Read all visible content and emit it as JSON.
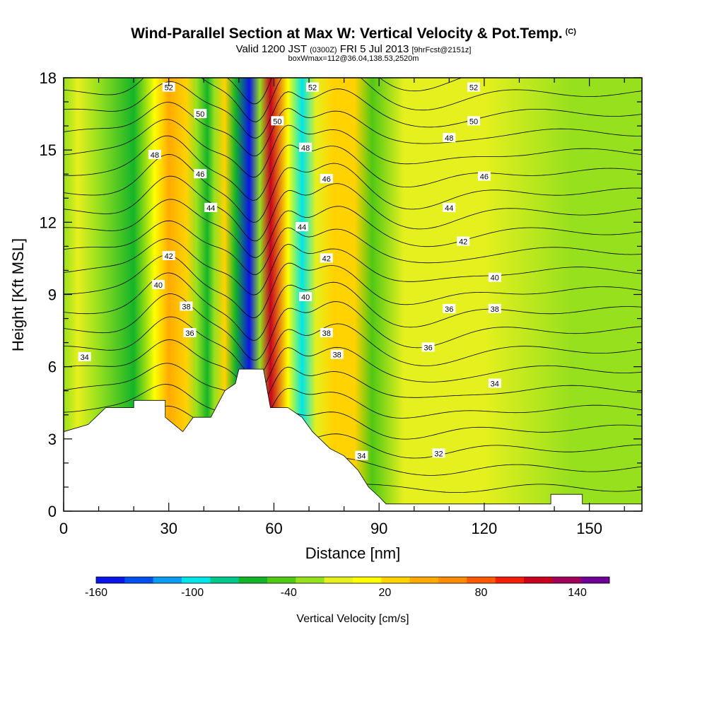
{
  "header": {
    "title": "Wind-Parallel Section at Max W: Vertical Velocity & Pot.Temp.",
    "title_mark": "(C)",
    "valid_a": "Valid 1200 JST ",
    "valid_b": "(0300Z)",
    "valid_c": " FRI 5 Jul 2013 ",
    "valid_d": "[9hrFcst@2151z]",
    "box": "boxWmax=112@36.04,138.53,2520m"
  },
  "colors": {
    "terrain": "#ffffff",
    "contour": "#000000",
    "scale": [
      "#0a14e6",
      "#0050f0",
      "#0a9cf0",
      "#00e6e6",
      "#00c88c",
      "#14b428",
      "#50c814",
      "#96e01e",
      "#e6f01e",
      "#ffff00",
      "#ffd200",
      "#ffaa00",
      "#ff8c00",
      "#ff5a00",
      "#f01e0a",
      "#c8001e",
      "#a0005a",
      "#6e0096"
    ]
  },
  "chart_data": {
    "type": "heatmap",
    "title": "Wind-Parallel Section at Max W: Vertical Velocity & Pot.Temp.",
    "xlabel": "Distance [nm]",
    "ylabel": "Height [Kft MSL]",
    "xlim": [
      0,
      165
    ],
    "ylim": [
      0,
      18
    ],
    "x_ticks": [
      0,
      30,
      60,
      90,
      120,
      150
    ],
    "y_ticks": [
      0,
      3,
      6,
      9,
      12,
      15,
      18
    ],
    "colorbar": {
      "label": "Vertical Velocity [cm/s]",
      "min": -160,
      "max": 160,
      "step": 20,
      "tick_labels": [
        "-160",
        "-100",
        "-40",
        "20",
        "80",
        "140"
      ],
      "tick_values": [
        -160,
        -100,
        -40,
        20,
        80,
        140
      ]
    },
    "vertical_velocity_bands": [
      {
        "x": 0,
        "value": -20
      },
      {
        "x": 4,
        "value": 0
      },
      {
        "x": 10,
        "value": -20
      },
      {
        "x": 20,
        "value": -60
      },
      {
        "x": 26,
        "value": 20
      },
      {
        "x": 30,
        "value": 60
      },
      {
        "x": 35,
        "value": 40
      },
      {
        "x": 38,
        "value": -20
      },
      {
        "x": 41,
        "value": -60
      },
      {
        "x": 43,
        "value": -20
      },
      {
        "x": 46,
        "value": 40
      },
      {
        "x": 49,
        "value": -60
      },
      {
        "x": 53,
        "value": -160
      },
      {
        "x": 56,
        "value": -20
      },
      {
        "x": 59,
        "value": 140
      },
      {
        "x": 64,
        "value": 20
      },
      {
        "x": 68,
        "value": -100
      },
      {
        "x": 72,
        "value": 0
      },
      {
        "x": 77,
        "value": 40
      },
      {
        "x": 83,
        "value": 40
      },
      {
        "x": 88,
        "value": -40
      },
      {
        "x": 97,
        "value": 0
      },
      {
        "x": 120,
        "value": 0
      },
      {
        "x": 145,
        "value": -20
      },
      {
        "x": 165,
        "value": -20
      }
    ],
    "potential_temperature": {
      "units": "C",
      "levels": [
        31,
        32,
        33,
        34,
        35,
        36,
        37,
        38,
        39,
        40,
        41,
        42,
        43,
        44,
        45,
        46,
        47,
        48,
        49,
        50,
        51,
        52,
        53
      ],
      "labels": [
        {
          "text": "34",
          "x": 6,
          "y": 6.4
        },
        {
          "text": "36",
          "x": 36,
          "y": 7.4
        },
        {
          "text": "38",
          "x": 35,
          "y": 8.5
        },
        {
          "text": "40",
          "x": 27,
          "y": 9.4
        },
        {
          "text": "42",
          "x": 30,
          "y": 10.6
        },
        {
          "text": "44",
          "x": 42,
          "y": 12.6
        },
        {
          "text": "46",
          "x": 39,
          "y": 14.0
        },
        {
          "text": "48",
          "x": 26,
          "y": 14.8
        },
        {
          "text": "50",
          "x": 39,
          "y": 16.5
        },
        {
          "text": "52",
          "x": 30,
          "y": 17.6
        },
        {
          "text": "50",
          "x": 61,
          "y": 16.2
        },
        {
          "text": "48",
          "x": 69,
          "y": 15.1
        },
        {
          "text": "46",
          "x": 75,
          "y": 13.8
        },
        {
          "text": "44",
          "x": 68,
          "y": 11.8
        },
        {
          "text": "42",
          "x": 75,
          "y": 10.5
        },
        {
          "text": "40",
          "x": 69,
          "y": 8.9
        },
        {
          "text": "38",
          "x": 75,
          "y": 7.4
        },
        {
          "text": "38",
          "x": 78,
          "y": 6.5
        },
        {
          "text": "36",
          "x": 104,
          "y": 6.8
        },
        {
          "text": "34",
          "x": 85,
          "y": 2.3
        },
        {
          "text": "32",
          "x": 107,
          "y": 2.4
        },
        {
          "text": "34",
          "x": 123,
          "y": 5.3
        },
        {
          "text": "36",
          "x": 110,
          "y": 8.4
        },
        {
          "text": "38",
          "x": 123,
          "y": 8.4
        },
        {
          "text": "40",
          "x": 123,
          "y": 9.7
        },
        {
          "text": "42",
          "x": 114,
          "y": 11.2
        },
        {
          "text": "44",
          "x": 110,
          "y": 12.6
        },
        {
          "text": "46",
          "x": 120,
          "y": 13.9
        },
        {
          "text": "48",
          "x": 110,
          "y": 15.5
        },
        {
          "text": "50",
          "x": 117,
          "y": 16.2
        },
        {
          "text": "52",
          "x": 117,
          "y": 17.6
        },
        {
          "text": "52",
          "x": 71,
          "y": 17.6
        }
      ]
    },
    "terrain_profile": [
      [
        0,
        3.3
      ],
      [
        7,
        3.6
      ],
      [
        12,
        4.3
      ],
      [
        20,
        4.3
      ],
      [
        20,
        4.6
      ],
      [
        29,
        4.6
      ],
      [
        29,
        3.9
      ],
      [
        34,
        3.3
      ],
      [
        37,
        3.9
      ],
      [
        42,
        3.9
      ],
      [
        46,
        5.0
      ],
      [
        49,
        5.3
      ],
      [
        50,
        5.9
      ],
      [
        57,
        5.9
      ],
      [
        59,
        4.3
      ],
      [
        64,
        4.3
      ],
      [
        68,
        3.9
      ],
      [
        71,
        3.3
      ],
      [
        76,
        2.6
      ],
      [
        80,
        2.3
      ],
      [
        84,
        1.7
      ],
      [
        87,
        1.0
      ],
      [
        90,
        0.6
      ],
      [
        92,
        0.3
      ],
      [
        100,
        0.3
      ],
      [
        139,
        0.3
      ],
      [
        139,
        0.7
      ],
      [
        148,
        0.7
      ],
      [
        148,
        0.3
      ],
      [
        165,
        0.3
      ],
      [
        165,
        0
      ]
    ]
  }
}
